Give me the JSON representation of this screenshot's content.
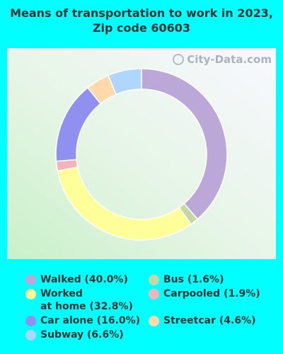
{
  "title": "Means of transportation to work in 2023, Zip code 60603",
  "watermark": "City-Data.com",
  "chart_data": {
    "type": "pie",
    "donut": true,
    "legend_position": "bottom",
    "slices": [
      {
        "label": "Walked",
        "value": 40.0,
        "color": "#BBA8D9",
        "legend": "Walked (40.0%)"
      },
      {
        "label": "Bus",
        "value": 1.6,
        "color": "#C4D8A6",
        "legend": "Bus (1.6%)"
      },
      {
        "label": "Worked at home",
        "value": 32.8,
        "color": "#FFFF99",
        "legend_line1": "Worked",
        "legend_line2": "at home (32.8%)"
      },
      {
        "label": "Carpooled",
        "value": 1.9,
        "color": "#F4B3B8",
        "legend": "Carpooled (1.9%)"
      },
      {
        "label": "Car alone",
        "value": 16.0,
        "color": "#9090F0",
        "legend": "Car alone (16.0%)"
      },
      {
        "label": "Streetcar",
        "value": 4.6,
        "color": "#FFD9AA",
        "legend": "Streetcar (4.6%)"
      },
      {
        "label": "Subway",
        "value": 6.6,
        "color": "#AFD6FF",
        "legend": "Subway (6.6%)"
      }
    ]
  }
}
